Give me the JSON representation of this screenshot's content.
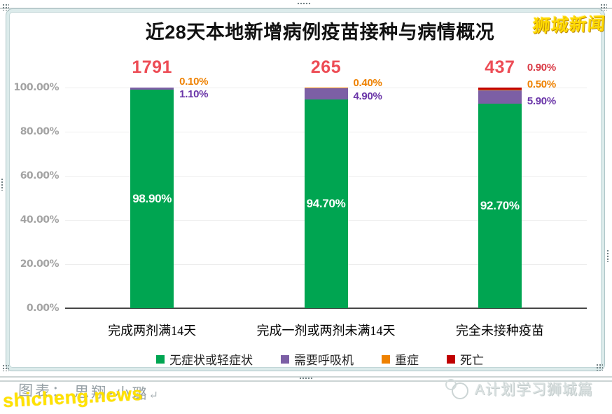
{
  "watermark_top_right": "狮城新闻",
  "footer": {
    "credit": "图表： 思翔•小璐",
    "return_mark": "↵",
    "site_watermark": "shicheng.news",
    "channel_watermark": "A计划学习狮城篇"
  },
  "chart_data": {
    "type": "bar",
    "stacked": true,
    "title": "近28天本地新增病例疫苗接种与病情概况",
    "categories": [
      "完成两剂满14天",
      "完成一剂或两剂未满14天",
      "完全未接种疫苗"
    ],
    "totals": [
      1791,
      265,
      437
    ],
    "totals_color": "#ed4c55",
    "series": [
      {
        "name": "无症状或轻症状",
        "color": "#00a551",
        "values": [
          98.9,
          94.7,
          92.7
        ]
      },
      {
        "name": "需要呼吸机",
        "color": "#7c5fa5",
        "values": [
          1.1,
          4.9,
          5.9
        ]
      },
      {
        "name": "重症",
        "color": "#ee8100",
        "values": [
          0.1,
          0.4,
          0.5
        ]
      },
      {
        "name": "死亡",
        "color": "#c00000",
        "values": [
          0,
          0,
          0.9
        ]
      }
    ],
    "inbar_labels": [
      "98.90%",
      "94.70%",
      "92.70%"
    ],
    "side_labels": [
      [
        {
          "text": "0.10%",
          "color": "#ee8100"
        },
        {
          "text": "1.10%",
          "color": "#6a35a8"
        }
      ],
      [
        {
          "text": "0.40%",
          "color": "#ee8100"
        },
        {
          "text": "4.90%",
          "color": "#6a35a8"
        }
      ],
      [
        {
          "text": "0.90%",
          "color": "#d93a45"
        },
        {
          "text": "0.50%",
          "color": "#ee8100"
        },
        {
          "text": "5.90%",
          "color": "#6a35a8"
        }
      ]
    ],
    "yticks": [
      "100.00%",
      "80.00%",
      "60.00%",
      "40.00%",
      "20.00%",
      "0.00%"
    ],
    "ylim": [
      0,
      100
    ],
    "grid": true,
    "legend_position": "bottom"
  }
}
